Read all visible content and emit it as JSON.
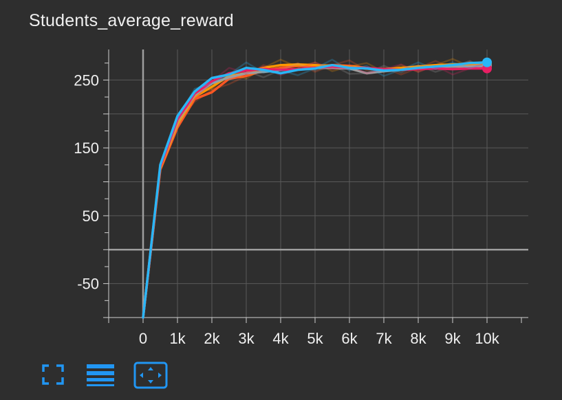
{
  "card": {
    "title": "Students_average_reward"
  },
  "toolbar": {
    "buttons": [
      {
        "name": "fullscreen-button",
        "icon": "fullscreen-icon"
      },
      {
        "name": "toggle-series-button",
        "icon": "list-lines-icon"
      },
      {
        "name": "fit-domain-button",
        "icon": "fit-to-data-icon"
      }
    ],
    "icon_color": "#2196f3"
  },
  "chart_data": {
    "type": "line",
    "title": "Students_average_reward",
    "xlabel": "",
    "ylabel": "",
    "xlim": [
      -1000,
      11200
    ],
    "ylim": [
      -100,
      295
    ],
    "x_ticks": [
      0,
      1000,
      2000,
      3000,
      4000,
      5000,
      6000,
      7000,
      8000,
      9000,
      10000
    ],
    "x_tick_labels": [
      "0",
      "1k",
      "2k",
      "3k",
      "4k",
      "5k",
      "6k",
      "7k",
      "8k",
      "9k",
      "10k"
    ],
    "y_ticks": [
      -50,
      50,
      150,
      250
    ],
    "y_tick_labels": [
      "-50",
      "50",
      "150",
      "250"
    ],
    "grid": true,
    "background": "#2e2e2e",
    "grid_color": "#5a5a5a",
    "zero_line_color": "#9e9e9e",
    "x": [
      0,
      500,
      1000,
      1500,
      2000,
      2500,
      3000,
      3500,
      4000,
      4500,
      5000,
      5500,
      6000,
      6500,
      7000,
      7500,
      8000,
      8500,
      9000,
      9500,
      10000
    ],
    "series": [
      {
        "color": "#ff5722",
        "values": [
          -100,
          118,
          180,
          222,
          232,
          252,
          256,
          264,
          268,
          271,
          270,
          272,
          271,
          268,
          264,
          266,
          268,
          270,
          272,
          273,
          274
        ]
      },
      {
        "color": "#ff9800",
        "values": [
          -100,
          120,
          185,
          225,
          240,
          256,
          260,
          268,
          272,
          273,
          272,
          271,
          270,
          267,
          266,
          268,
          270,
          272,
          273,
          274,
          275
        ]
      },
      {
        "color": "#9e9e9e",
        "values": [
          -100,
          122,
          190,
          228,
          245,
          254,
          260,
          262,
          265,
          266,
          268,
          268,
          267,
          260,
          263,
          265,
          268,
          270,
          270,
          270,
          271
        ]
      },
      {
        "color": "#e91e63",
        "values": [
          -100,
          122,
          192,
          230,
          248,
          260,
          264,
          266,
          265,
          266,
          268,
          270,
          268,
          268,
          266,
          265,
          266,
          267,
          266,
          267,
          267
        ]
      },
      {
        "color": "#29b6f6",
        "values": [
          -100,
          125,
          197,
          233,
          253,
          258,
          268,
          265,
          260,
          265,
          267,
          272,
          268,
          267,
          264,
          265,
          268,
          270,
          272,
          275,
          276
        ]
      }
    ]
  }
}
